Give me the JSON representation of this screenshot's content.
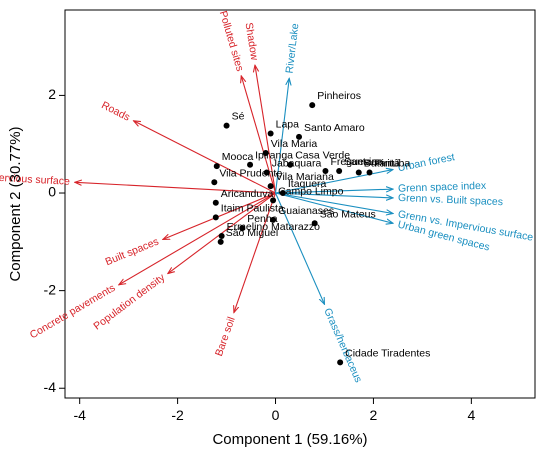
{
  "chart_data": {
    "type": "scatter",
    "subtype": "pca-biplot",
    "xlabel": "Component 1 (59.16%)",
    "ylabel": "Component 2 (30.77%)",
    "xlim": [
      -4.3,
      5.3
    ],
    "ylim": [
      -4.2,
      3.75
    ],
    "x_ticks": [
      -4,
      -2,
      0,
      2,
      4
    ],
    "y_ticks": [
      -4,
      -2,
      0,
      2
    ],
    "grid": false,
    "colors": {
      "points": "#000000",
      "red_vectors": "#d7242a",
      "blue_vectors": "#1a8fc0"
    },
    "points": [
      {
        "label": "Pinheiros",
        "x": 0.75,
        "y": 1.8
      },
      {
        "label": "Lapa",
        "x": -0.1,
        "y": 1.22
      },
      {
        "label": "Santo Amaro",
        "x": 0.48,
        "y": 1.15
      },
      {
        "label": "Sé",
        "x": -1.0,
        "y": 1.38
      },
      {
        "label": "Vila Maria",
        "x": -0.2,
        "y": 0.82
      },
      {
        "label": "Ipiranga",
        "x": -0.52,
        "y": 0.58
      },
      {
        "label": "Casa Verde",
        "x": 0.3,
        "y": 0.58
      },
      {
        "label": "Freguesia",
        "x": 1.02,
        "y": 0.45
      },
      {
        "label": "Pirituba",
        "x": 1.92,
        "y": 0.42
      },
      {
        "label": "Jabaquara",
        "x": -0.18,
        "y": 0.42
      },
      {
        "label": "Santana",
        "x": 1.3,
        "y": 0.45
      },
      {
        "label": "Butantã",
        "x": 1.7,
        "y": 0.42
      },
      {
        "label": "Mooca",
        "x": -1.2,
        "y": 0.55
      },
      {
        "label": "Vila Prudente",
        "x": -1.25,
        "y": 0.22
      },
      {
        "label": "Vila Mariana",
        "x": -0.1,
        "y": 0.14
      },
      {
        "label": "Aricanduva",
        "x": -1.22,
        "y": -0.2
      },
      {
        "label": "Itaquera",
        "x": 0.15,
        "y": 0.0
      },
      {
        "label": "Campo Limpo",
        "x": -0.05,
        "y": -0.15
      },
      {
        "label": "Itaim Paulista",
        "x": -1.22,
        "y": -0.5
      },
      {
        "label": "Guaianases",
        "x": -0.05,
        "y": -0.55
      },
      {
        "label": "Penha",
        "x": -0.68,
        "y": -0.72
      },
      {
        "label": "São Mateus",
        "x": 0.8,
        "y": -0.62
      },
      {
        "label": "Ermelino Matarazzo",
        "x": -1.1,
        "y": -0.88
      },
      {
        "label": "São Miguel",
        "x": -1.12,
        "y": -1.0
      },
      {
        "label": "Cidade Tiradentes",
        "x": 1.32,
        "y": -3.47
      }
    ],
    "vectors": [
      {
        "label": "Polluted sites",
        "group": "red",
        "x": -0.7,
        "y": 2.4
      },
      {
        "label": "Shadow",
        "group": "red",
        "x": -0.42,
        "y": 2.62
      },
      {
        "label": "Roads",
        "group": "red",
        "x": -2.9,
        "y": 1.48
      },
      {
        "label": "Impervious surface",
        "group": "red",
        "x": -4.1,
        "y": 0.22
      },
      {
        "label": "Built spaces",
        "group": "red",
        "x": -2.3,
        "y": -0.95
      },
      {
        "label": "Concrete pavements",
        "group": "red",
        "x": -3.2,
        "y": -1.88
      },
      {
        "label": "Population density",
        "group": "red",
        "x": -2.2,
        "y": -1.65
      },
      {
        "label": "Bare soil",
        "group": "red",
        "x": -0.85,
        "y": -2.45
      },
      {
        "label": "River/Lake",
        "group": "blue",
        "x": 0.28,
        "y": 2.35
      },
      {
        "label": "Urban forest",
        "group": "blue",
        "x": 2.4,
        "y": 0.48
      },
      {
        "label": "Grenn space index",
        "group": "blue",
        "x": 2.4,
        "y": 0.08
      },
      {
        "label": "Grenn vs. Built spaces",
        "group": "blue",
        "x": 2.4,
        "y": -0.1
      },
      {
        "label": "Grenn vs. Impervious surface",
        "group": "blue",
        "x": 2.4,
        "y": -0.42
      },
      {
        "label": "Urban green spaces",
        "group": "blue",
        "x": 2.4,
        "y": -0.62
      },
      {
        "label": "Grass/herbaceus",
        "group": "blue",
        "x": 1.0,
        "y": -2.28
      }
    ]
  }
}
